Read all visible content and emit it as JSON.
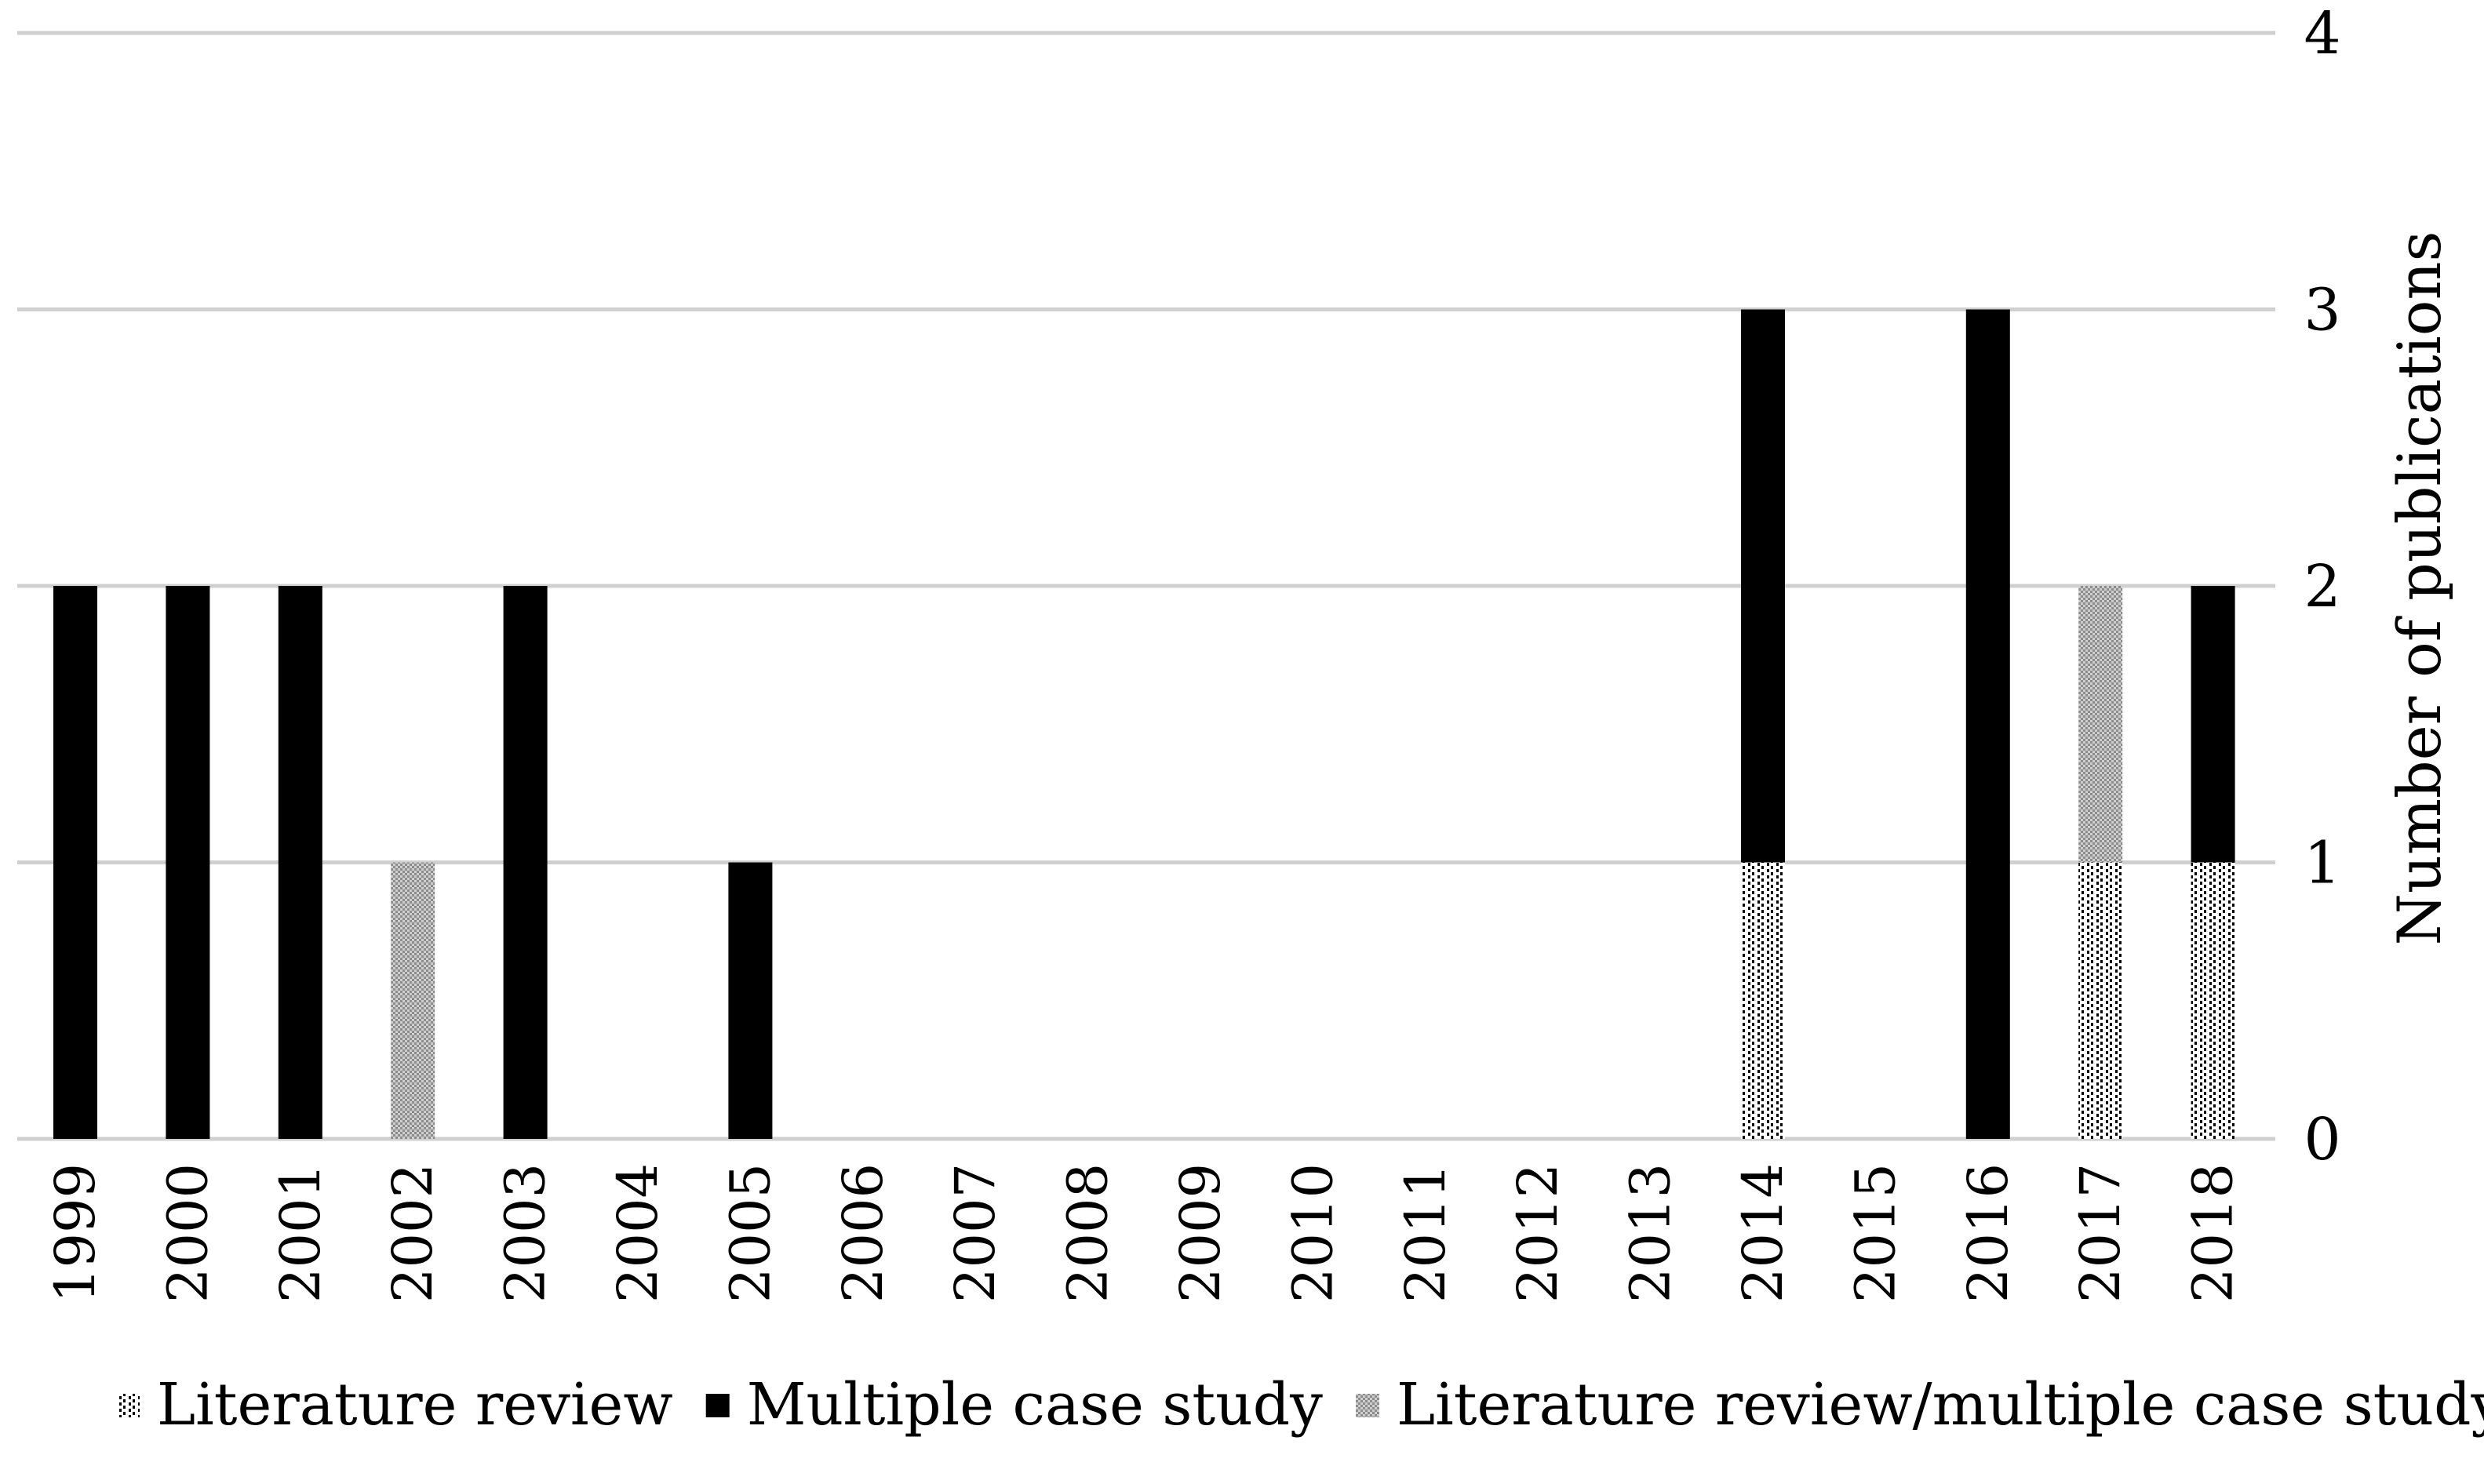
{
  "chart_data": {
    "type": "bar",
    "stacked": true,
    "categories": [
      "1999",
      "2000",
      "2001",
      "2002",
      "2003",
      "2004",
      "2005",
      "2006",
      "2007",
      "2008",
      "2009",
      "2010",
      "2011",
      "2012",
      "2013",
      "2014",
      "2015",
      "2016",
      "2017",
      "2018"
    ],
    "series": [
      {
        "name": "Literature review",
        "values": [
          0,
          0,
          0,
          0,
          0,
          0,
          0,
          0,
          0,
          0,
          0,
          0,
          0,
          0,
          0,
          1,
          0,
          0,
          1,
          1
        ],
        "color": "#ffffff",
        "pattern": "dotted"
      },
      {
        "name": "Multiple case study",
        "values": [
          2,
          2,
          2,
          0,
          2,
          0,
          1,
          0,
          0,
          0,
          0,
          0,
          0,
          0,
          0,
          2,
          0,
          3,
          0,
          1
        ],
        "color": "#000000",
        "pattern": "solid"
      },
      {
        "name": "Literature review/multiple case study",
        "values": [
          0,
          0,
          0,
          1,
          0,
          0,
          0,
          0,
          0,
          0,
          0,
          0,
          0,
          0,
          0,
          0,
          0,
          0,
          1,
          0
        ],
        "color": "#999999",
        "pattern": "grid"
      }
    ],
    "ylabel": "Number of publications",
    "xlabel": "",
    "ylim": [
      0,
      4
    ],
    "yticks": [
      "0",
      "1",
      "2",
      "3",
      "4"
    ],
    "y_axis_side": "right",
    "grid": true,
    "legend_position": "bottom"
  }
}
